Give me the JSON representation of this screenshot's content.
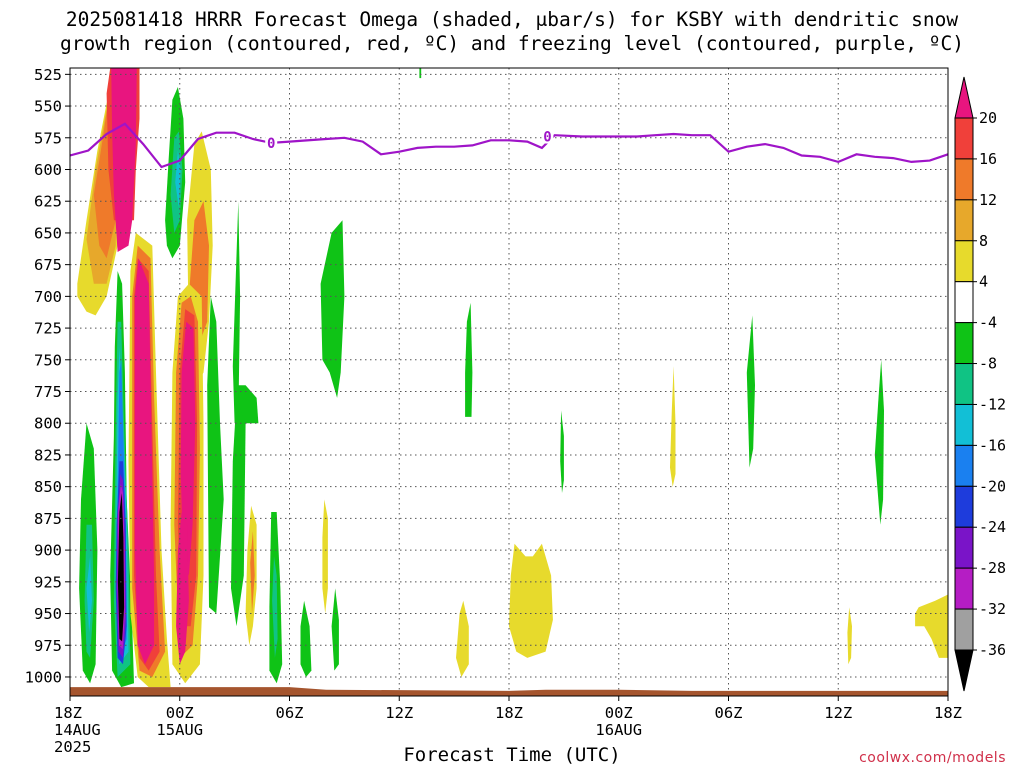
{
  "title_line1": "2025081418 HRRR Forecast Omega (shaded, μbar/s) for KSBY with dendritic snow",
  "title_line2": "growth region (contoured, red, ºC) and freezing level (contoured, purple, ºC)",
  "credit": "coolwx.com/models",
  "chart_data": {
    "type": "heatmap",
    "title": "2025081418 HRRR Forecast Omega (shaded, μbar/s) for KSBY with dendritic snow growth region (contoured, red, ºC) and freezing level (contoured, purple, ºC)",
    "xlabel": "Forecast Time (UTC)",
    "ylabel": "",
    "x_range_hours": [
      0,
      48
    ],
    "x_ticks": [
      {
        "h": 0,
        "lines": [
          "18Z",
          "14AUG",
          "2025"
        ]
      },
      {
        "h": 6,
        "lines": [
          "00Z",
          "15AUG"
        ]
      },
      {
        "h": 12,
        "lines": [
          "06Z"
        ]
      },
      {
        "h": 18,
        "lines": [
          "12Z"
        ]
      },
      {
        "h": 24,
        "lines": [
          "18Z"
        ]
      },
      {
        "h": 30,
        "lines": [
          "00Z",
          "16AUG"
        ]
      },
      {
        "h": 36,
        "lines": [
          "06Z"
        ]
      },
      {
        "h": 42,
        "lines": [
          "12Z"
        ]
      },
      {
        "h": 48,
        "lines": [
          "18Z"
        ]
      }
    ],
    "y_ticks": [
      525,
      550,
      575,
      600,
      625,
      650,
      675,
      700,
      725,
      750,
      775,
      800,
      825,
      850,
      875,
      900,
      925,
      950,
      975,
      1000
    ],
    "y_range_hpa": [
      520,
      1015
    ],
    "grid": true,
    "colorbar": {
      "levels": [
        20,
        16,
        12,
        8,
        4,
        -4,
        -8,
        -12,
        -16,
        -20,
        -24,
        -28,
        -32,
        -36
      ],
      "colors": [
        "#e8157f",
        "#f0403a",
        "#ef7a2a",
        "#e7a82b",
        "#e7da2c",
        "#ffffff",
        "#0fc316",
        "#10c384",
        "#12bfd6",
        "#1a80f0",
        "#1e3cdc",
        "#7a14c8",
        "#b51dc4",
        "#a0a0a0",
        "#000000"
      ]
    },
    "freezing_level": {
      "label": "0",
      "color": "#9f14c8",
      "points": [
        [
          0,
          589
        ],
        [
          1,
          585
        ],
        [
          2,
          572
        ],
        [
          3,
          564
        ],
        [
          4,
          580
        ],
        [
          5,
          598
        ],
        [
          6,
          593
        ],
        [
          7,
          576
        ],
        [
          8,
          571
        ],
        [
          9,
          571
        ],
        [
          10,
          576
        ],
        [
          11,
          579
        ],
        [
          12,
          578
        ],
        [
          14,
          576
        ],
        [
          15,
          575
        ],
        [
          16,
          578
        ],
        [
          17,
          588
        ],
        [
          18,
          586
        ],
        [
          19,
          583
        ],
        [
          20,
          582
        ],
        [
          21,
          582
        ],
        [
          22,
          581
        ],
        [
          23,
          577
        ],
        [
          24,
          577
        ],
        [
          25,
          578
        ],
        [
          25.8,
          583
        ],
        [
          26.5,
          573
        ],
        [
          28,
          574
        ],
        [
          29,
          574
        ],
        [
          30,
          574
        ],
        [
          31,
          574
        ],
        [
          32,
          573
        ],
        [
          33,
          572
        ],
        [
          34,
          573
        ],
        [
          35,
          573
        ],
        [
          36,
          586
        ],
        [
          37,
          582
        ],
        [
          38,
          580
        ],
        [
          39,
          583
        ],
        [
          40,
          589
        ],
        [
          41,
          590
        ],
        [
          42,
          594
        ],
        [
          43,
          588
        ],
        [
          44,
          590
        ],
        [
          45,
          591
        ],
        [
          46,
          594
        ],
        [
          47,
          593
        ],
        [
          48,
          588
        ]
      ]
    },
    "omega_features": [
      {
        "class": 20,
        "level": "max",
        "hours": [
          2.2,
          3.6
        ],
        "hpa": [
          520,
          665
        ]
      },
      {
        "class": 20,
        "level": "max",
        "hours": [
          3.6,
          4.5
        ],
        "hpa": [
          660,
          1010
        ]
      },
      {
        "class": -36,
        "level": "min",
        "hours": [
          2.4,
          3.6
        ],
        "hpa": [
          855,
          975
        ]
      },
      {
        "class": -8,
        "level": "min",
        "hours": [
          7.8,
          9.2
        ],
        "hpa": [
          625,
          945
        ]
      },
      {
        "class": 4,
        "level": "max",
        "hours": [
          24.0,
          26.0
        ],
        "hpa": [
          895,
          985
        ]
      },
      {
        "class": 4,
        "level": "max",
        "hours": [
          46.5,
          48
        ],
        "hpa": [
          935,
          980
        ]
      }
    ],
    "ground_band_color": "#a5552e"
  }
}
